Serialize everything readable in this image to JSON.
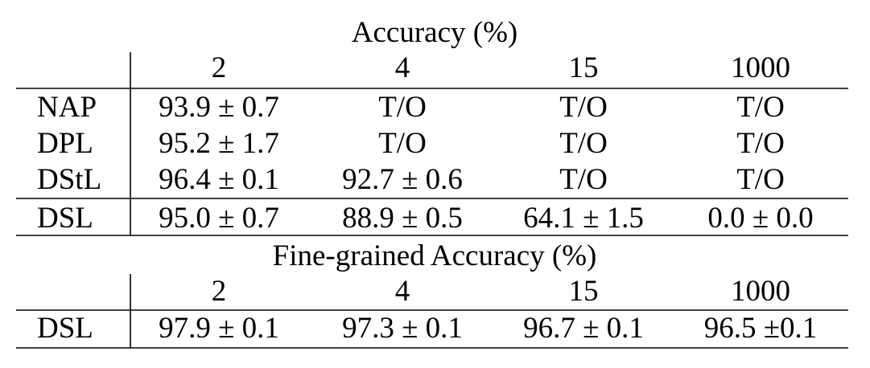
{
  "sections": [
    {
      "title": "Accuracy (%)",
      "columns": [
        "2",
        "4",
        "15",
        "1000"
      ],
      "rows": [
        {
          "label": "NAP",
          "cells": [
            "93.9 ± 0.7",
            "T/O",
            "T/O",
            "T/O"
          ]
        },
        {
          "label": "DPL",
          "cells": [
            "95.2 ± 1.7",
            "T/O",
            "T/O",
            "T/O"
          ]
        },
        {
          "label": "DStL",
          "cells": [
            "96.4 ± 0.1",
            "92.7 ± 0.6",
            "T/O",
            "T/O"
          ]
        },
        {
          "label": "DSL",
          "cells": [
            "95.0 ± 0.7",
            "88.9 ± 0.5",
            "64.1 ± 1.5",
            "0.0 ± 0.0"
          ]
        }
      ]
    },
    {
      "title": "Fine-grained Accuracy (%)",
      "columns": [
        "2",
        "4",
        "15",
        "1000"
      ],
      "rows": [
        {
          "label": "DSL",
          "cells": [
            "97.9 ± 0.1",
            "97.3 ± 0.1",
            "96.7 ± 0.1",
            "96.5 ±0.1"
          ]
        }
      ]
    }
  ]
}
